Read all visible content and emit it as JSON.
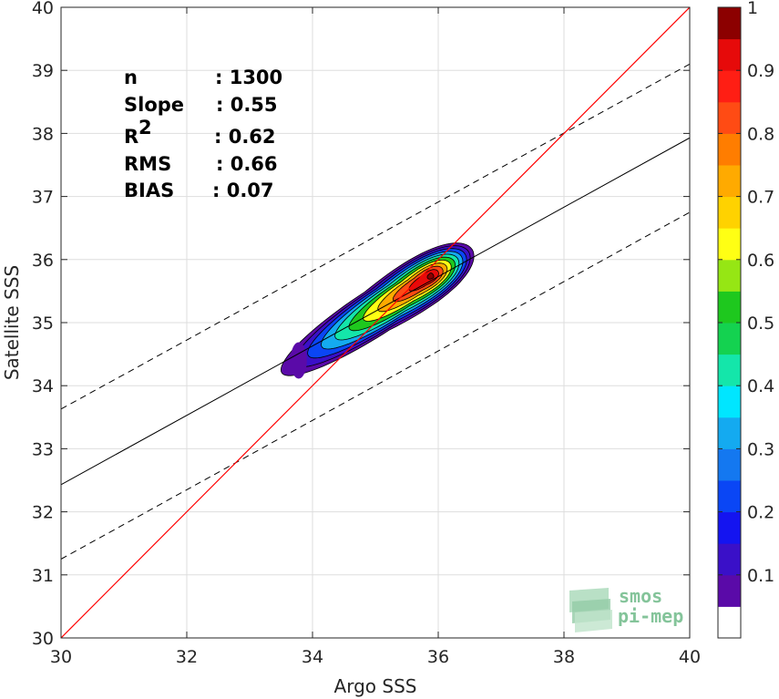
{
  "chart_data": {
    "type": "heatmap",
    "xlabel": "Argo SSS",
    "ylabel": "Satellite SSS",
    "xlim": [
      30,
      40
    ],
    "ylim": [
      30,
      40
    ],
    "x_ticks": [
      "30",
      "32",
      "34",
      "36",
      "38",
      "40"
    ],
    "y_ticks": [
      "30",
      "31",
      "32",
      "33",
      "34",
      "35",
      "36",
      "37",
      "38",
      "39",
      "40"
    ],
    "grid": true,
    "stats": [
      {
        "label": "n",
        "value": ": 1300"
      },
      {
        "label": "Slope",
        "value": ": 0.55"
      },
      {
        "label": "R",
        "superscript": "2",
        "value": ": 0.62"
      },
      {
        "label": "RMS",
        "value": ": 0.66"
      },
      {
        "label": "BIAS",
        "value": ": 0.07"
      }
    ],
    "identity_line": {
      "x": [
        30,
        40
      ],
      "y": [
        30,
        40
      ],
      "color": "#ff0000"
    },
    "regression_line": {
      "x": [
        30,
        40
      ],
      "y": [
        32.43,
        37.93
      ],
      "color": "#000000"
    },
    "confidence_upper": {
      "x": [
        30,
        40
      ],
      "y": [
        33.63,
        39.1
      ],
      "style": "dashed"
    },
    "confidence_lower": {
      "x": [
        30,
        40
      ],
      "y": [
        31.25,
        36.75
      ],
      "style": "dashed"
    },
    "density_peak": {
      "x": 35.9,
      "y": 35.75
    },
    "contour_levels": [
      0.05,
      0.1,
      0.2,
      0.3,
      0.4,
      0.5,
      0.6,
      0.7,
      0.8,
      0.9,
      1.0
    ],
    "colorbar": {
      "range": [
        0,
        1
      ],
      "tick_labels": [
        "0.1",
        "0.2",
        "0.3",
        "0.4",
        "0.5",
        "0.6",
        "0.7",
        "0.8",
        "0.9",
        "1"
      ],
      "colors": [
        "#ffffff",
        "#5a0aa8",
        "#3a10c8",
        "#1414f0",
        "#0a46f5",
        "#1478f0",
        "#14aaf0",
        "#00e6ff",
        "#14e6aa",
        "#14d250",
        "#1ec81e",
        "#96e614",
        "#ffff14",
        "#ffd200",
        "#ffaa00",
        "#ff7d00",
        "#ff4b14",
        "#ff1e14",
        "#e60a0a",
        "#8c0000"
      ]
    }
  },
  "logo": {
    "line1": "smos",
    "line2": "pi-mep",
    "color": "#84c49a"
  }
}
